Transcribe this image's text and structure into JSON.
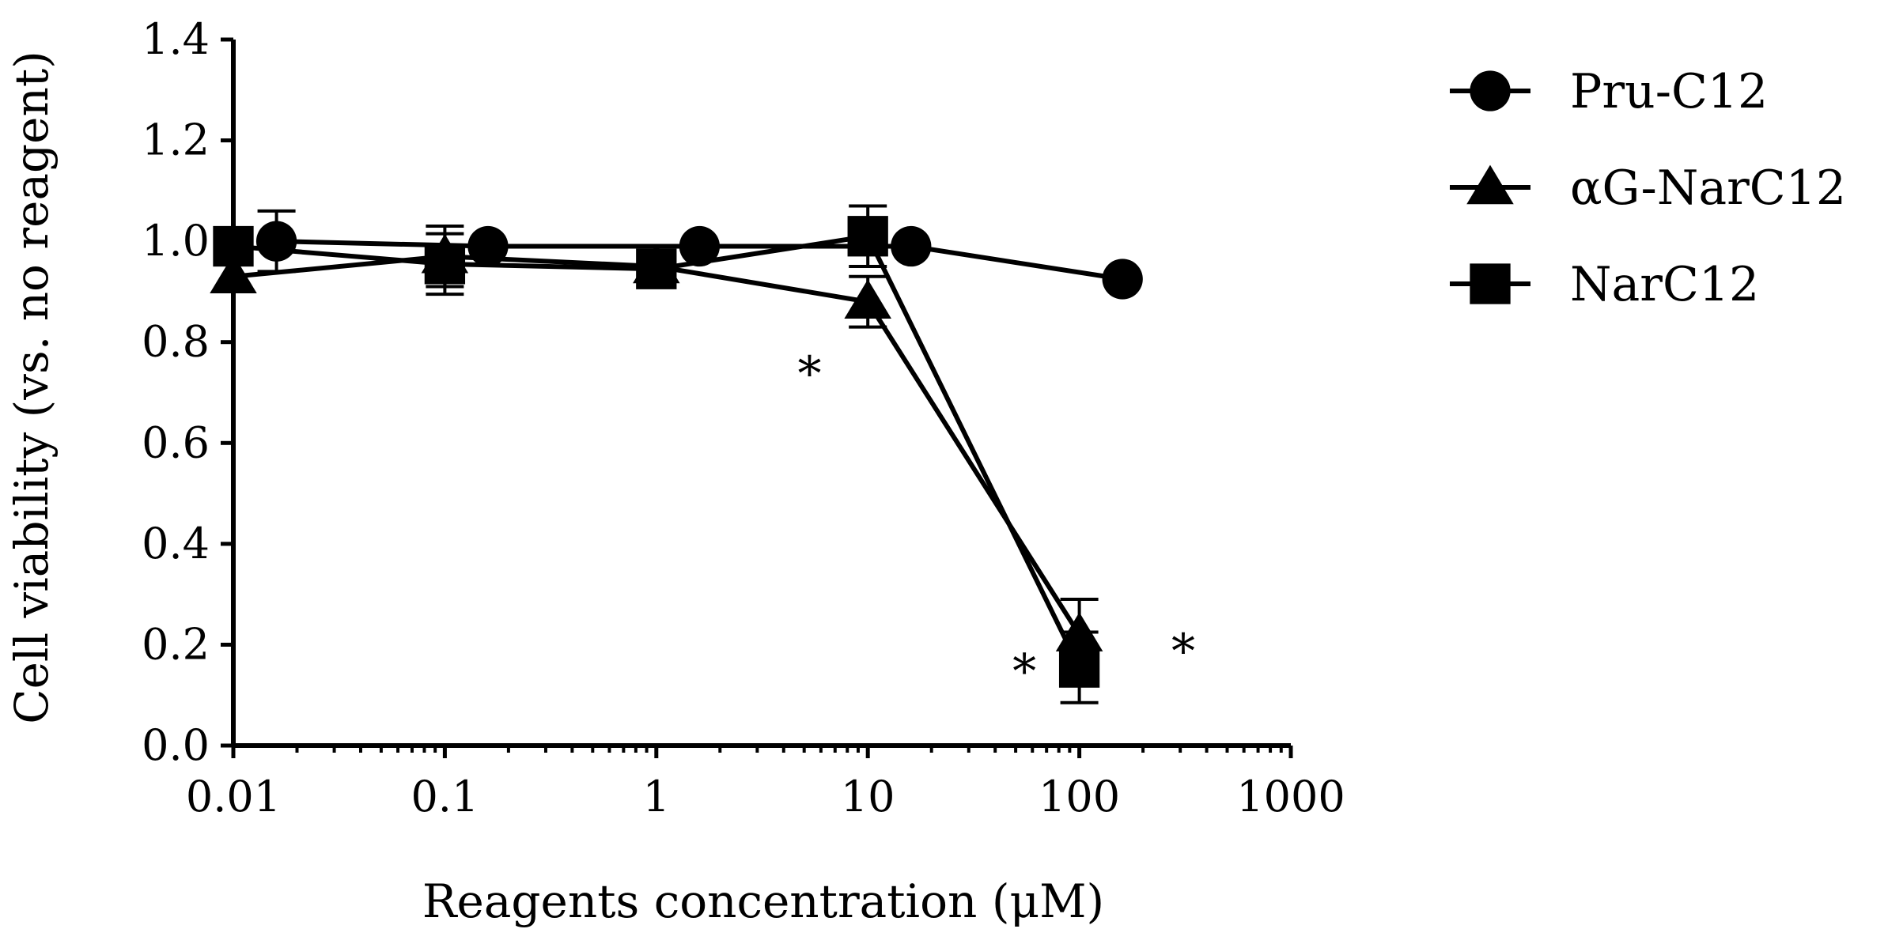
{
  "chart_data": {
    "type": "line",
    "title": "",
    "xlabel": "Reagents concentration (μM)",
    "ylabel": "Cell viability (vs. no reagent)",
    "xscale": "log",
    "xlim": [
      0.01,
      1000
    ],
    "ylim": [
      0.0,
      1.4
    ],
    "x_ticks": [
      0.01,
      0.1,
      1,
      10,
      100,
      1000
    ],
    "x_tick_labels": [
      "0.01",
      "0.1",
      "1",
      "10",
      "100",
      "1000"
    ],
    "y_ticks": [
      0.0,
      0.2,
      0.4,
      0.6,
      0.8,
      1.0,
      1.2,
      1.4
    ],
    "y_tick_labels": [
      "0.0",
      "0.2",
      "0.4",
      "0.6",
      "0.8",
      "1.0",
      "1.2",
      "1.4"
    ],
    "grid": false,
    "legend_position": "top-right, outside plot",
    "series": [
      {
        "name": "Pru-C12",
        "marker": "circle",
        "color": "#000000",
        "points": [
          {
            "x": 0.016,
            "y": 1.0,
            "err": 0.06
          },
          {
            "x": 0.16,
            "y": 0.99,
            "err": 0.0
          },
          {
            "x": 1.6,
            "y": 0.99,
            "err": 0.0
          },
          {
            "x": 16,
            "y": 0.99,
            "err": 0.0
          },
          {
            "x": 160,
            "y": 0.925,
            "err": 0.0
          }
        ]
      },
      {
        "name": "αG-NarC12",
        "marker": "triangle",
        "color": "#000000",
        "points": [
          {
            "x": 0.01,
            "y": 0.93,
            "err": 0.0
          },
          {
            "x": 0.1,
            "y": 0.97,
            "err": 0.06
          },
          {
            "x": 1,
            "y": 0.95,
            "err": 0.0
          },
          {
            "x": 10,
            "y": 0.88,
            "err": 0.05
          },
          {
            "x": 100,
            "y": 0.22,
            "err": 0.07
          }
        ]
      },
      {
        "name": "NarC12",
        "marker": "square",
        "color": "#000000",
        "points": [
          {
            "x": 0.01,
            "y": 0.99,
            "err": 0.0
          },
          {
            "x": 0.1,
            "y": 0.955,
            "err": 0.06
          },
          {
            "x": 1,
            "y": 0.945,
            "err": 0.0
          },
          {
            "x": 10,
            "y": 1.01,
            "err": 0.06
          },
          {
            "x": 100,
            "y": 0.155,
            "err": 0.07
          }
        ]
      }
    ],
    "annotations": [
      {
        "text": "*",
        "x": 5.3,
        "y": 0.74
      },
      {
        "text": "*",
        "x": 55,
        "y": 0.15
      },
      {
        "text": "*",
        "x": 310,
        "y": 0.19
      }
    ]
  }
}
